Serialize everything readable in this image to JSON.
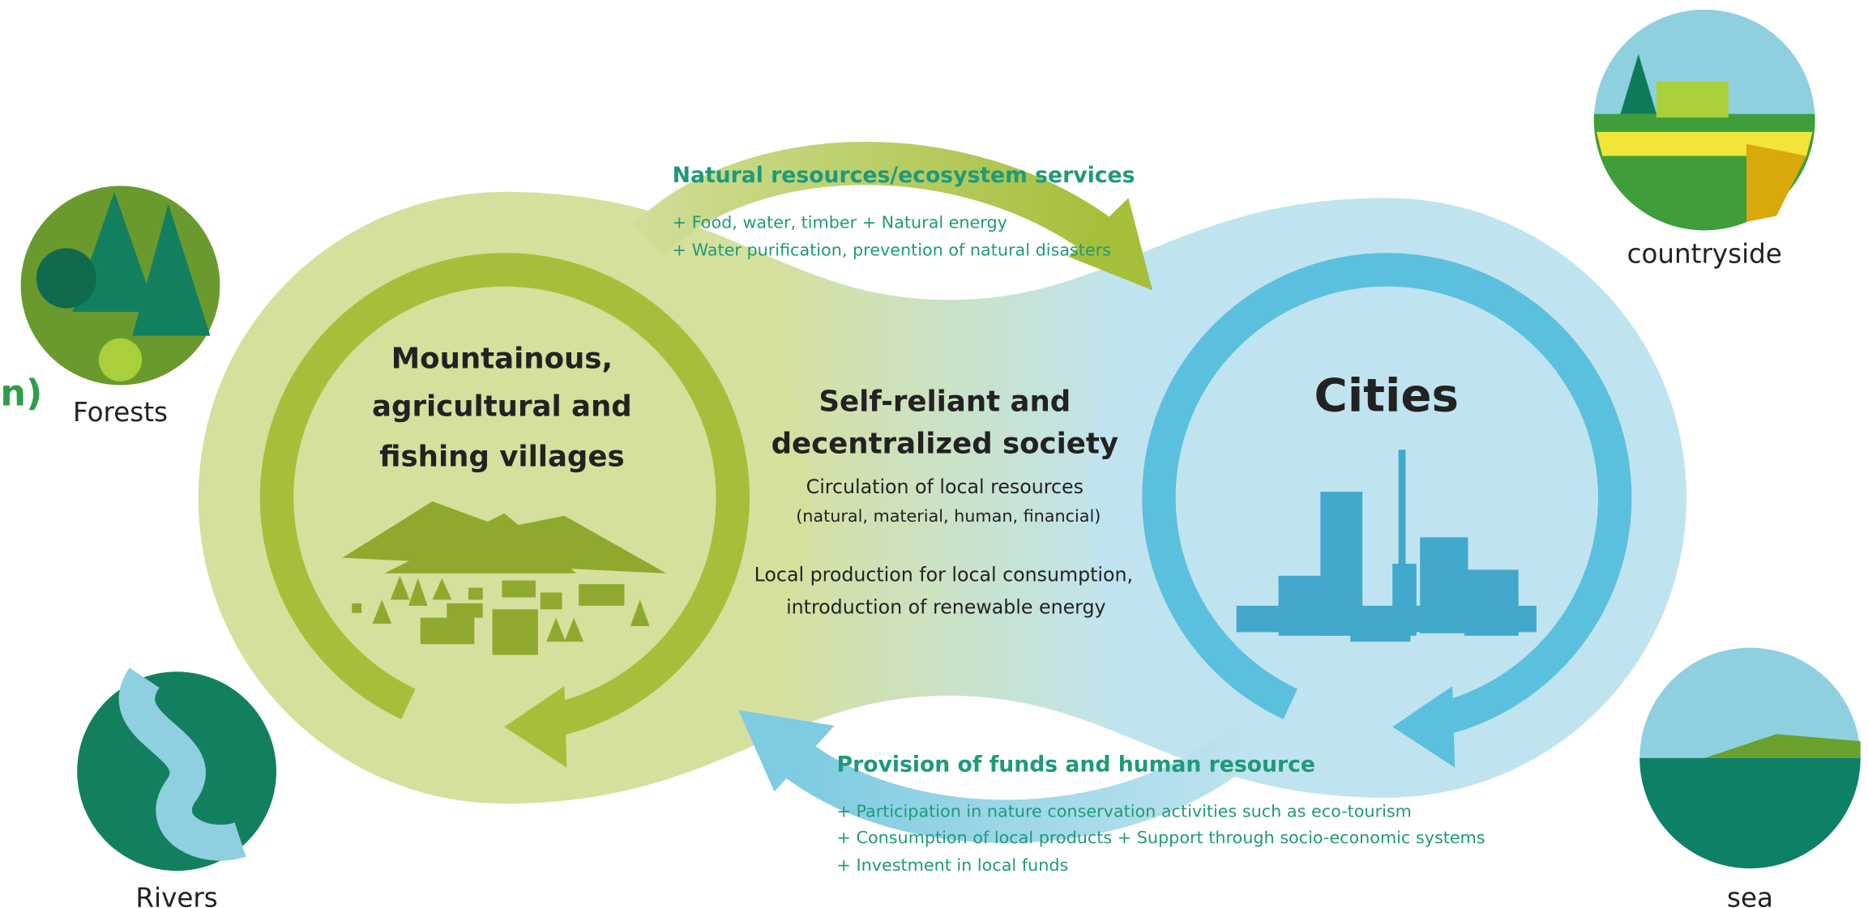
{
  "edge_fragment": "n)",
  "places": {
    "forests": "Forests",
    "countryside": "countryside",
    "rivers": "Rivers",
    "sea": "sea"
  },
  "top_flow": {
    "title": "Natural resources/ecosystem services",
    "items": [
      "+ Food, water, timber + Natural energy",
      "+ Water purification, prevention of natural disasters"
    ]
  },
  "left_node": {
    "title": [
      "Mountainous,",
      "agricultural and",
      "fishing villages"
    ]
  },
  "center": {
    "title": [
      "Self-reliant and",
      "decentralized society"
    ],
    "lines": [
      "Circulation of local resources",
      "(natural, material, human, financial)",
      "Local production for local consumption,",
      "introduction of renewable energy"
    ]
  },
  "right_node": {
    "title": "Cities"
  },
  "bottom_flow": {
    "title": "Provision of funds and human resource",
    "items": [
      "+ Participation in nature conservation activities such as eco-tourism",
      "+ Consumption of local products + Support through socio-economic systems",
      "+ Investment in local funds"
    ]
  }
}
